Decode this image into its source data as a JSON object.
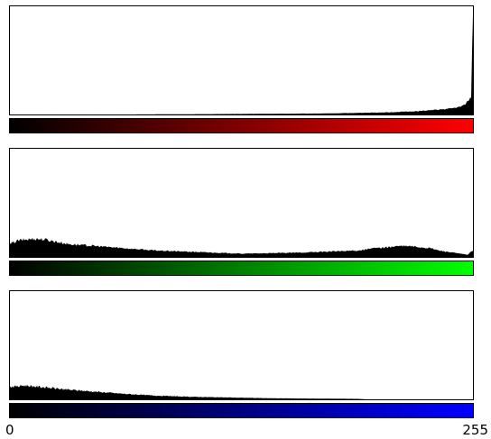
{
  "chart_data": [
    {
      "type": "area",
      "x_range": [
        0,
        255
      ],
      "ylim": [
        0,
        1
      ],
      "gradient_color": "#ff0000",
      "series": [
        {
          "x": [
            0,
            64,
            128,
            160,
            176,
            192,
            208,
            216,
            224,
            232,
            240,
            244,
            248,
            250,
            252,
            254,
            255
          ],
          "values": [
            0.0,
            0.0,
            0.005,
            0.008,
            0.01,
            0.015,
            0.02,
            0.025,
            0.03,
            0.04,
            0.05,
            0.06,
            0.07,
            0.09,
            0.12,
            0.16,
            1.0
          ]
        }
      ]
    },
    {
      "type": "area",
      "x_range": [
        0,
        255
      ],
      "ylim": [
        0,
        1
      ],
      "gradient_color": "#00ff00",
      "series": [
        {
          "x": [
            0,
            4,
            8,
            14,
            20,
            26,
            32,
            40,
            48,
            56,
            64,
            80,
            96,
            112,
            128,
            144,
            160,
            176,
            192,
            200,
            208,
            214,
            220,
            226,
            232,
            236,
            240,
            244,
            248,
            252,
            255
          ],
          "values": [
            0.12,
            0.15,
            0.16,
            0.17,
            0.16,
            0.14,
            0.12,
            0.11,
            0.1,
            0.09,
            0.08,
            0.06,
            0.05,
            0.04,
            0.03,
            0.035,
            0.04,
            0.05,
            0.06,
            0.08,
            0.09,
            0.1,
            0.1,
            0.09,
            0.08,
            0.06,
            0.05,
            0.04,
            0.03,
            0.02,
            0.06
          ]
        }
      ]
    },
    {
      "type": "area",
      "x_range": [
        0,
        255
      ],
      "ylim": [
        0,
        1
      ],
      "gradient_color": "#0000ff",
      "series": [
        {
          "x": [
            0,
            4,
            8,
            14,
            20,
            26,
            32,
            40,
            48,
            56,
            64,
            80,
            96,
            112,
            128,
            144,
            160,
            176,
            192,
            196,
            255
          ],
          "values": [
            0.12,
            0.12,
            0.13,
            0.12,
            0.11,
            0.1,
            0.09,
            0.08,
            0.07,
            0.06,
            0.05,
            0.035,
            0.025,
            0.02,
            0.015,
            0.01,
            0.008,
            0.006,
            0.004,
            0.0,
            0.0
          ]
        }
      ]
    }
  ],
  "axis": {
    "x_min_label": "0",
    "x_max_label": "255"
  }
}
